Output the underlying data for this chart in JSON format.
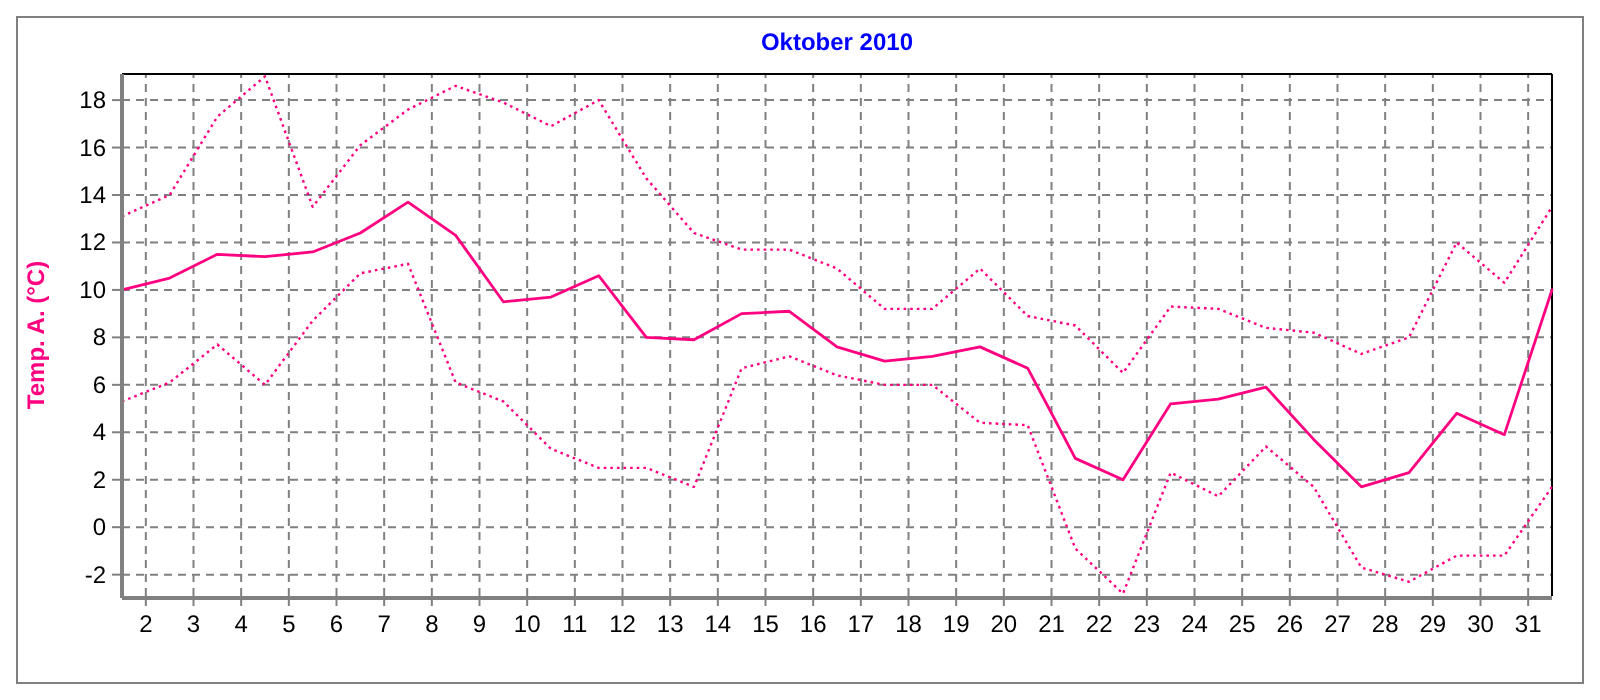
{
  "chart_data": {
    "type": "line",
    "title": "Oktober 2010",
    "ylabel": "Temp. A. (°C)",
    "x": [
      1.5,
      2.5,
      3.5,
      4.5,
      5.5,
      6.5,
      7.5,
      8.5,
      9.5,
      10.5,
      11.5,
      12.5,
      13.5,
      14.5,
      15.5,
      16.5,
      17.5,
      18.5,
      19.5,
      20.5,
      21.5,
      22.5,
      23.5,
      24.5,
      25.5,
      26.5,
      27.5,
      28.5,
      29.5,
      30.5,
      31.5
    ],
    "xlim": [
      1.5,
      31.5
    ],
    "xticks": [
      2,
      3,
      4,
      5,
      6,
      7,
      8,
      9,
      10,
      11,
      12,
      13,
      14,
      15,
      16,
      17,
      18,
      19,
      20,
      21,
      22,
      23,
      24,
      25,
      26,
      27,
      28,
      29,
      30,
      31
    ],
    "ylim": [
      -2.9,
      19.1
    ],
    "yticks": [
      -2,
      0,
      2,
      4,
      6,
      8,
      10,
      12,
      14,
      16,
      18
    ],
    "grid": true,
    "marker": "none",
    "series": [
      {
        "color": "#ff0080",
        "line_style": "dotted",
        "values": [
          13.1,
          14.0,
          17.3,
          19.0,
          13.5,
          16.1,
          17.6,
          18.6,
          17.9,
          16.9,
          18.0,
          14.7,
          12.4,
          11.7,
          11.7,
          10.9,
          9.2,
          9.2,
          10.9,
          8.9,
          8.5,
          6.5,
          9.3,
          9.2,
          8.4,
          8.2,
          7.3,
          8.0,
          12.0,
          10.3,
          13.5
        ]
      },
      {
        "color": "#ff0080",
        "line_style": "solid",
        "values": [
          10.0,
          10.5,
          11.5,
          11.4,
          11.6,
          12.4,
          13.7,
          12.3,
          9.5,
          9.7,
          10.6,
          8.0,
          7.9,
          9.0,
          9.1,
          7.6,
          7.0,
          7.2,
          7.6,
          6.7,
          2.9,
          2.0,
          5.2,
          5.4,
          5.9,
          3.7,
          1.7,
          2.3,
          4.8,
          3.9,
          10.0
        ]
      },
      {
        "color": "#ff0080",
        "line_style": "dotted",
        "values": [
          5.3,
          6.1,
          7.7,
          6.0,
          8.7,
          10.7,
          11.1,
          6.1,
          5.3,
          3.3,
          2.5,
          2.5,
          1.7,
          6.7,
          7.2,
          6.4,
          6.0,
          6.0,
          4.4,
          4.3,
          -0.9,
          -2.8,
          2.3,
          1.3,
          3.4,
          1.7,
          -1.7,
          -2.3,
          -1.2,
          -1.2,
          1.7
        ]
      }
    ]
  }
}
